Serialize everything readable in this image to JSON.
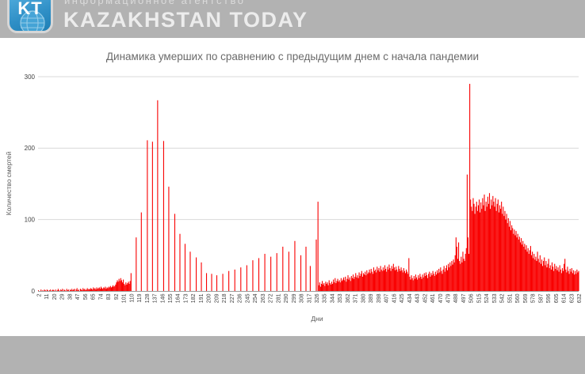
{
  "header": {
    "logo_text": "KT",
    "tagline": "информационное агентство",
    "brand": "KAZAKHSTAN TODAY"
  },
  "chart": {
    "title": "Динамика умерших по сравнению с предыдущим днем с начала пандемии",
    "x_axis_title": "Дни",
    "y_axis_title": "Количество смертей"
  },
  "colors": {
    "header_bg": "#b2b2b2",
    "footer_bg": "#b2b2b2",
    "bar": "#f90000",
    "gridline": "#d9d9d9",
    "axis_line": "#9a9a9a",
    "tick_text": "#404040",
    "logo_blue": "#2f8fc6"
  },
  "chart_data": {
    "type": "bar",
    "title": "Динамика умерших по сравнению с предыдущим днем с начала пандемии",
    "xlabel": "Дни",
    "ylabel": "Количество смертей",
    "ylim": [
      0,
      300
    ],
    "grid": true,
    "legend": false,
    "y_ticks": [
      0,
      100,
      200,
      300
    ],
    "x_tick_labels": [
      2,
      11,
      20,
      29,
      38,
      47,
      56,
      65,
      74,
      83,
      92,
      101,
      110,
      119,
      128,
      137,
      146,
      155,
      164,
      173,
      182,
      191,
      200,
      209,
      218,
      227,
      236,
      245,
      254,
      263,
      272,
      281,
      290,
      299,
      308,
      317,
      326,
      335,
      344,
      353,
      362,
      371,
      380,
      389,
      398,
      407,
      416,
      425,
      434,
      443,
      452,
      461,
      470,
      479,
      488,
      497,
      506,
      515,
      524,
      533,
      542,
      551,
      560,
      569,
      578,
      587,
      596,
      605,
      614,
      623,
      632
    ],
    "day_start": 2,
    "values": [
      1,
      0,
      0,
      2,
      0,
      1,
      0,
      2,
      1,
      0,
      2,
      1,
      0,
      1,
      2,
      0,
      1,
      2,
      1,
      0,
      2,
      0,
      1,
      3,
      1,
      0,
      2,
      1,
      3,
      0,
      2,
      1,
      0,
      3,
      1,
      2,
      0,
      2,
      1,
      3,
      1,
      2,
      3,
      0,
      2,
      4,
      1,
      2,
      0,
      3,
      2,
      1,
      4,
      2,
      3,
      1,
      2,
      4,
      2,
      3,
      2,
      4,
      3,
      2,
      5,
      3,
      4,
      2,
      5,
      3,
      4,
      5,
      3,
      6,
      4,
      3,
      5,
      4,
      6,
      3,
      5,
      4,
      6,
      5,
      7,
      5,
      6,
      8,
      6,
      7,
      9,
      12,
      15,
      13,
      17,
      14,
      18,
      15,
      12,
      16,
      10,
      8,
      12,
      9,
      11,
      13,
      10,
      14,
      25,
      0,
      0,
      0,
      0,
      0,
      75,
      0,
      0,
      0,
      0,
      0,
      110,
      0,
      0,
      0,
      0,
      0,
      0,
      211,
      0,
      0,
      0,
      0,
      0,
      209,
      0,
      0,
      0,
      0,
      0,
      267,
      0,
      0,
      0,
      0,
      0,
      0,
      210,
      0,
      0,
      0,
      0,
      0,
      146,
      0,
      0,
      0,
      0,
      0,
      0,
      108,
      0,
      0,
      0,
      0,
      0,
      80,
      0,
      0,
      0,
      0,
      0,
      66,
      0,
      0,
      0,
      0,
      0,
      55,
      0,
      0,
      0,
      0,
      0,
      0,
      47,
      0,
      0,
      0,
      0,
      0,
      40,
      0,
      0,
      0,
      0,
      0,
      25,
      0,
      0,
      0,
      0,
      0,
      24,
      0,
      0,
      0,
      0,
      0,
      22,
      0,
      0,
      0,
      0,
      0,
      0,
      24,
      0,
      0,
      0,
      0,
      0,
      0,
      28,
      0,
      0,
      0,
      0,
      0,
      0,
      30,
      0,
      0,
      0,
      0,
      0,
      0,
      33,
      0,
      0,
      0,
      0,
      0,
      0,
      36,
      0,
      0,
      0,
      0,
      0,
      0,
      43,
      0,
      0,
      0,
      0,
      0,
      0,
      46,
      0,
      0,
      0,
      0,
      0,
      0,
      52,
      0,
      0,
      0,
      0,
      0,
      0,
      48,
      0,
      0,
      0,
      0,
      0,
      0,
      53,
      0,
      0,
      0,
      0,
      0,
      0,
      62,
      0,
      0,
      0,
      0,
      0,
      0,
      55,
      0,
      0,
      0,
      0,
      0,
      0,
      70,
      0,
      0,
      0,
      0,
      0,
      0,
      50,
      0,
      0,
      0,
      0,
      0,
      62,
      0,
      0,
      0,
      0,
      35,
      0,
      0,
      0,
      0,
      0,
      0,
      72,
      0,
      125,
      8,
      12,
      6,
      10,
      14,
      9,
      11,
      7,
      13,
      10,
      12,
      8,
      15,
      11,
      9,
      13,
      10,
      16,
      12,
      18,
      11,
      14,
      17,
      13,
      15,
      12,
      18,
      14,
      16,
      19,
      15,
      20,
      13,
      17,
      22,
      16,
      19,
      14,
      21,
      18,
      23,
      17,
      20,
      25,
      19,
      22,
      18,
      26,
      21,
      24,
      28,
      20,
      25,
      23,
      27,
      22,
      29,
      24,
      26,
      30,
      25,
      31,
      27,
      24,
      33,
      28,
      30,
      26,
      34,
      29,
      32,
      27,
      35,
      30,
      28,
      33,
      29,
      36,
      31,
      27,
      34,
      30,
      37,
      32,
      28,
      35,
      31,
      38,
      33,
      29,
      34,
      30,
      27,
      35,
      31,
      28,
      33,
      29,
      26,
      32,
      28,
      25,
      30,
      27,
      24,
      46,
      20,
      16,
      22,
      18,
      15,
      21,
      17,
      23,
      19,
      16,
      22,
      18,
      24,
      20,
      17,
      23,
      19,
      25,
      21,
      26,
      22,
      18,
      24,
      27,
      20,
      25,
      22,
      28,
      24,
      21,
      27,
      23,
      29,
      25,
      31,
      26,
      33,
      28,
      24,
      30,
      35,
      27,
      32,
      36,
      29,
      38,
      33,
      40,
      35,
      42,
      37,
      44,
      40,
      50,
      75,
      62,
      45,
      68,
      42,
      38,
      48,
      40,
      55,
      45,
      42,
      52,
      60,
      163,
      75,
      52,
      290,
      128,
      118,
      112,
      130,
      122,
      108,
      118,
      125,
      112,
      120,
      128,
      110,
      124,
      115,
      130,
      120,
      135,
      112,
      125,
      118,
      132,
      122,
      137,
      115,
      128,
      120,
      133,
      125,
      118,
      130,
      112,
      122,
      128,
      110,
      120,
      115,
      125,
      108,
      118,
      105,
      112,
      100,
      108,
      95,
      102,
      90,
      98,
      85,
      92,
      88,
      80,
      86,
      78,
      84,
      75,
      80,
      72,
      76,
      68,
      74,
      65,
      70,
      62,
      66,
      58,
      64,
      55,
      60,
      52,
      57,
      63,
      50,
      55,
      46,
      52,
      44,
      48,
      42,
      55,
      45,
      40,
      50,
      38,
      44,
      35,
      42,
      47,
      36,
      42,
      33,
      38,
      45,
      32,
      36,
      30,
      40,
      34,
      28,
      38,
      31,
      35,
      29,
      33,
      27,
      36,
      30,
      25,
      32,
      28,
      38,
      45,
      30,
      26,
      34,
      28,
      24,
      31,
      27,
      32,
      25,
      29,
      23,
      28,
      24,
      30,
      26,
      28
    ]
  }
}
